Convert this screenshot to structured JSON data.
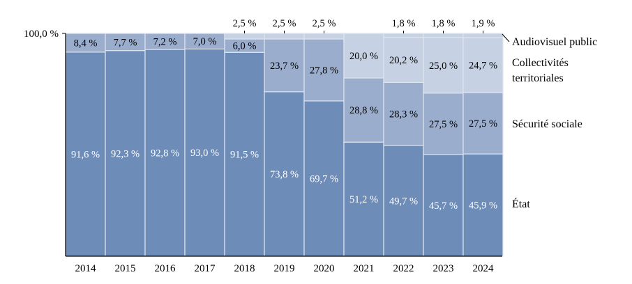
{
  "chart_data": {
    "type": "bar",
    "stacked": true,
    "title": "",
    "xlabel": "",
    "ylabel": "",
    "ylim": [
      0,
      100
    ],
    "y_tick_label": "100,0 %",
    "grid": false,
    "legend_placement": "right",
    "categories": [
      "2014",
      "2015",
      "2016",
      "2017",
      "2018",
      "2019",
      "2020",
      "2021",
      "2022",
      "2023",
      "2024"
    ],
    "series": [
      {
        "name": "État",
        "color": "#6d8cb8",
        "values": [
          91.6,
          92.3,
          92.8,
          93.0,
          91.5,
          73.8,
          69.7,
          51.2,
          49.7,
          45.7,
          45.9
        ],
        "labels": [
          "91,6 %",
          "92,3 %",
          "92,8 %",
          "93,0 %",
          "91,5 %",
          "73,8 %",
          "69,7 %",
          "51,2 %",
          "49,7 %",
          "45,7 %",
          "45,9 %"
        ]
      },
      {
        "name": "Sécurité sociale",
        "color": "#9aadcd",
        "values": [
          0,
          0,
          0,
          0,
          0,
          0,
          0,
          28.8,
          28.3,
          27.5,
          27.5
        ],
        "labels": [
          "",
          "",
          "",
          "",
          "",
          "",
          "",
          "28,8 %",
          "28,3 %",
          "27,5 %",
          "27,5 %"
        ]
      },
      {
        "name": "Collectivités territoriales",
        "color": "#c6d1e4",
        "values": [
          8.4,
          7.7,
          7.2,
          7.0,
          6.0,
          23.7,
          27.8,
          20.0,
          20.2,
          25.0,
          24.7
        ],
        "colors": [
          "#9aadcd",
          "#9aadcd",
          "#9aadcd",
          "#9aadcd",
          "#9aadcd",
          "#9aadcd",
          "#9aadcd",
          "#c6d1e4",
          "#c6d1e4",
          "#c6d1e4",
          "#c6d1e4"
        ],
        "labels": [
          "8,4 %",
          "7,7 %",
          "7,2 %",
          "7,0 %",
          "6,0 %",
          "23,7 %",
          "27,8 %",
          "20,0 %",
          "20,2 %",
          "25,0 %",
          "24,7 %"
        ]
      },
      {
        "name": "Audiovisuel public",
        "color": "#c6d1e4",
        "values": [
          0,
          0,
          0,
          0,
          2.5,
          2.5,
          2.5,
          0,
          1.8,
          1.8,
          1.9
        ],
        "labels": [
          "",
          "",
          "",
          "",
          "2,5 %",
          "2,5 %",
          "2,5 %",
          "",
          "1,8 %",
          "1,8 %",
          "1,9 %"
        ]
      }
    ],
    "legend": [
      "Audiovisuel public",
      "Collectivités territoriales",
      "Sécurité sociale",
      "État"
    ]
  }
}
